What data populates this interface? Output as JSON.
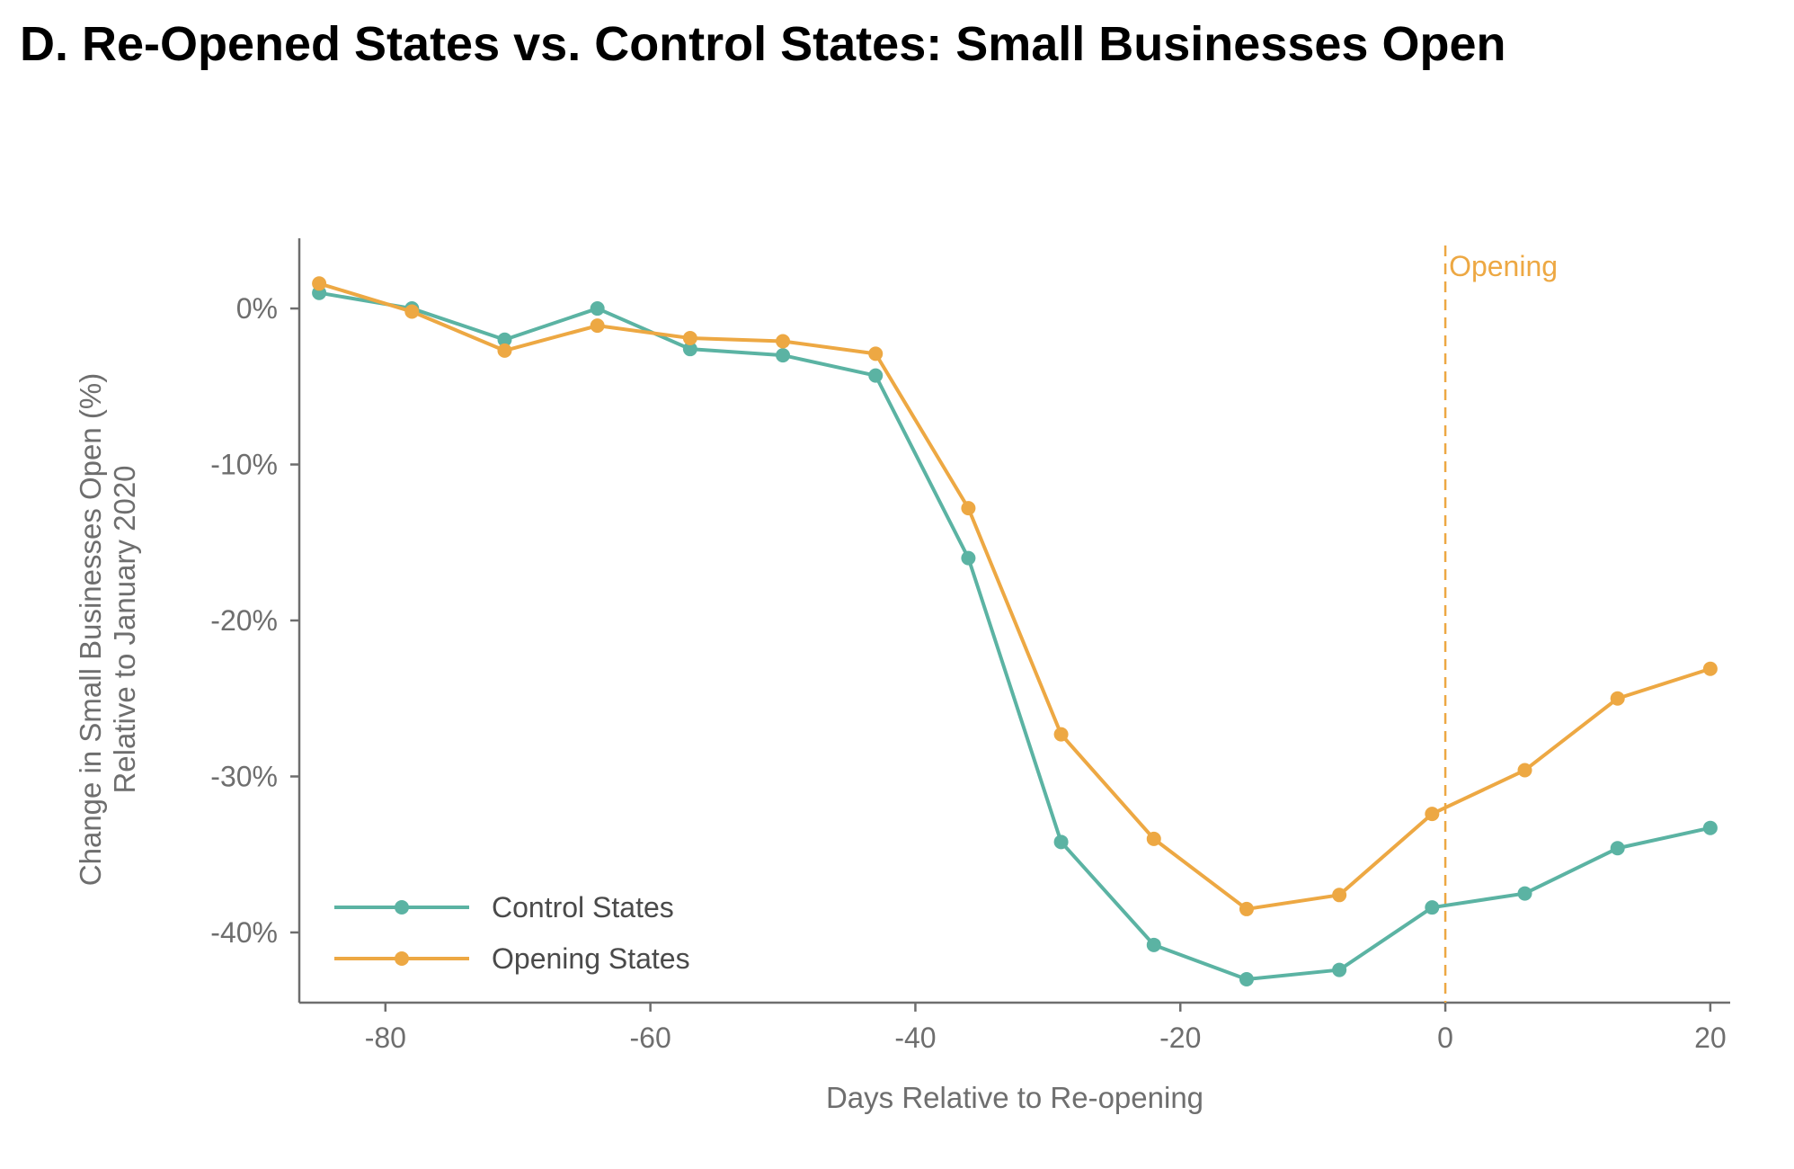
{
  "chart_data": {
    "type": "line",
    "title": "D. Re-Opened States vs. Control States: Small Businesses Open",
    "xlabel": "Days Relative to Re-opening",
    "ylabel": [
      "Change in Small Businesses Open (%)",
      "Relative to January 2020"
    ],
    "xlim": [
      -86.5,
      21.5
    ],
    "ylim": [
      -44.5,
      4.5
    ],
    "x_ticks": [
      -80,
      -60,
      -40,
      -20,
      0,
      20
    ],
    "x_tick_labels": [
      "-80",
      "-60",
      "-40",
      "-20",
      "0",
      "20"
    ],
    "y_ticks": [
      0,
      -10,
      -20,
      -30,
      -40
    ],
    "y_tick_labels": [
      "0%",
      "-10%",
      "-20%",
      "-30%",
      "-40%"
    ],
    "x": [
      -85,
      -78,
      -71,
      -64,
      -57,
      -50,
      -43,
      -36,
      -29,
      -22,
      -15,
      -8,
      -1,
      6,
      13,
      20
    ],
    "series": [
      {
        "name": "Control States",
        "color": "#5bb3a3",
        "values": [
          1.0,
          0.0,
          -2.0,
          0.0,
          -2.6,
          -3.0,
          -4.3,
          -16.0,
          -34.2,
          -40.8,
          -43.0,
          -42.4,
          -38.4,
          -37.5,
          -34.6,
          -33.3
        ]
      },
      {
        "name": "Opening States",
        "color": "#eda843",
        "values": [
          1.6,
          -0.2,
          -2.7,
          -1.1,
          -1.9,
          -2.1,
          -2.9,
          -12.8,
          -27.3,
          -34.0,
          -38.5,
          -37.6,
          -32.4,
          -29.6,
          -25.0,
          -23.1
        ]
      }
    ],
    "annotations": [
      {
        "x": 0,
        "text": "Opening",
        "color": "#eda843",
        "line_style": "dashed"
      }
    ],
    "grid": false,
    "legend_position": "bottom-left"
  }
}
